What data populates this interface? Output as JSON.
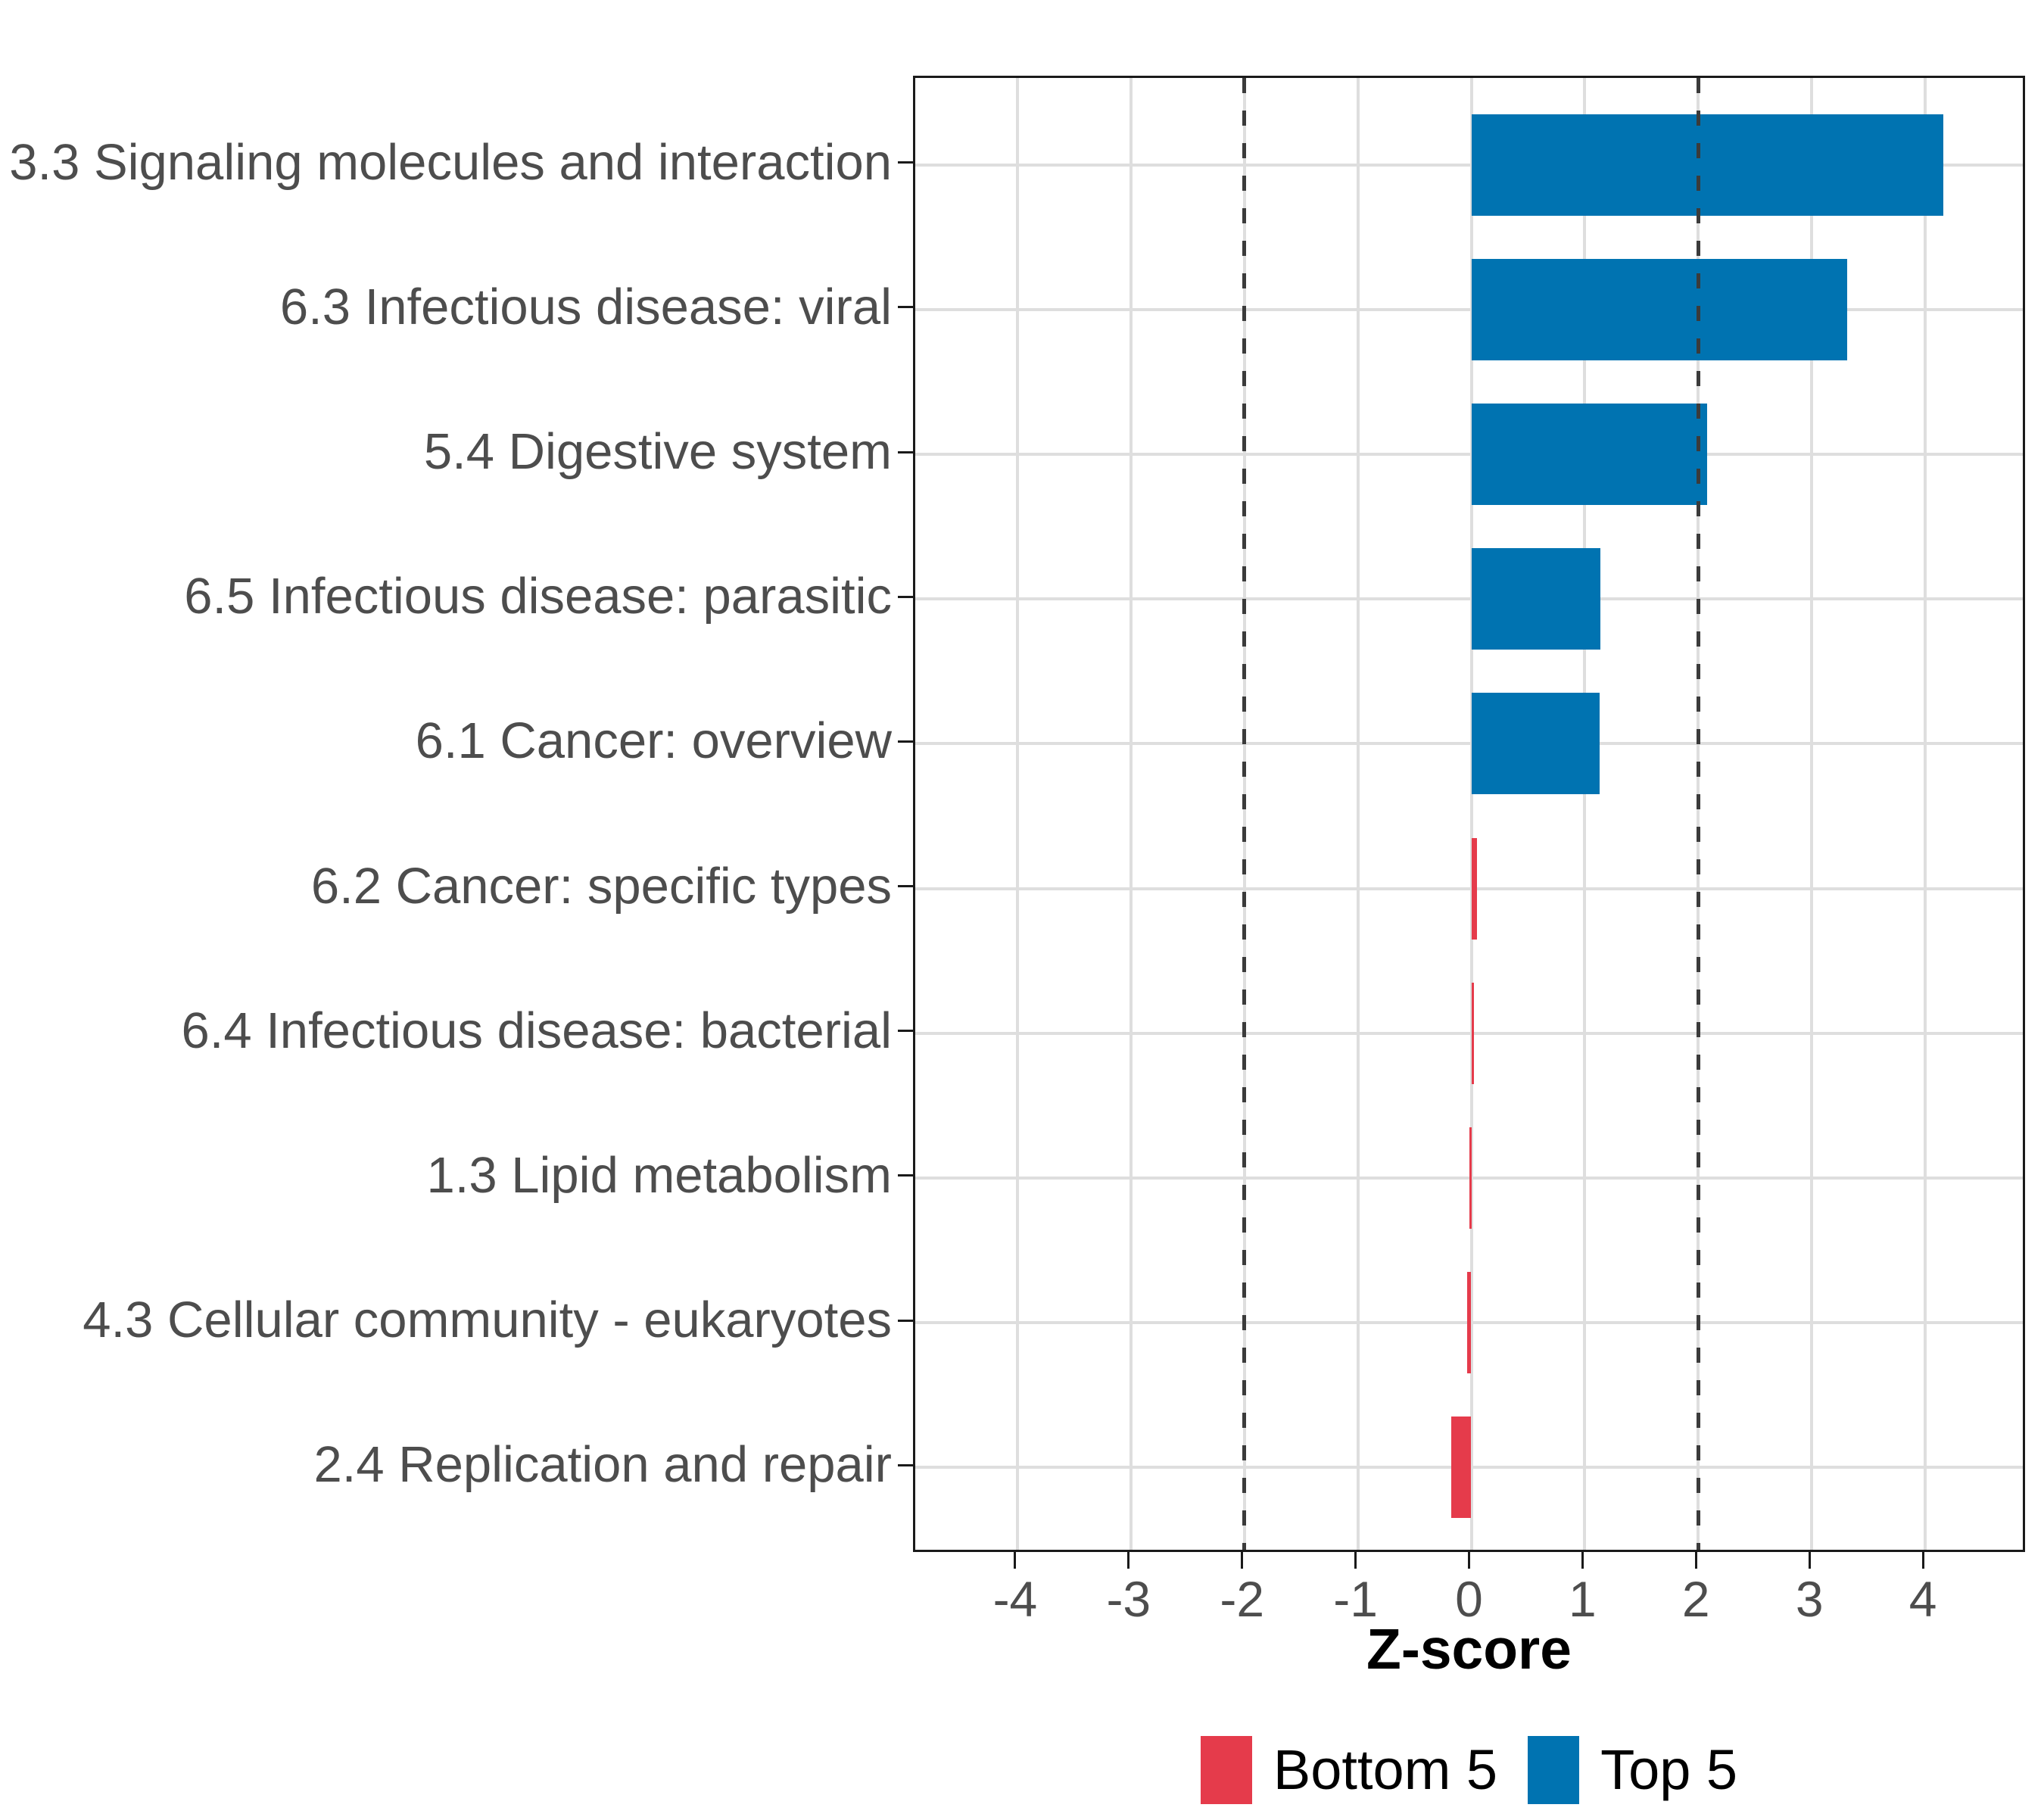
{
  "chart_data": {
    "type": "bar",
    "orientation": "horizontal",
    "title": "",
    "xlabel": "Z-score",
    "categories": [
      "3.3 Signaling molecules and interaction",
      "6.3 Infectious disease: viral",
      "5.4 Digestive system",
      "6.5 Infectious disease: parasitic",
      "6.1 Cancer: overview",
      "6.2 Cancer: specific types",
      "6.4 Infectious disease: bacterial",
      "1.3 Lipid metabolism",
      "4.3 Cellular community - eukaryotes",
      "2.4 Replication and repair"
    ],
    "values": [
      4.16,
      3.31,
      2.08,
      1.14,
      1.13,
      0.05,
      0.02,
      -0.02,
      -0.04,
      -0.18
    ],
    "groups": [
      "Top 5",
      "Top 5",
      "Top 5",
      "Top 5",
      "Top 5",
      "Bottom 5",
      "Bottom 5",
      "Bottom 5",
      "Bottom 5",
      "Bottom 5"
    ],
    "x_ticks": [
      -4,
      -3,
      -2,
      -1,
      0,
      1,
      2,
      3,
      4
    ],
    "x_tick_labels": [
      "-4",
      "-3",
      "-2",
      "-1",
      "0",
      "1",
      "2",
      "3",
      "4"
    ],
    "xlim": [
      -4.9,
      4.9
    ],
    "reference_lines": [
      -2,
      2
    ],
    "grid": "major-only",
    "legend_position": "bottom",
    "legend": [
      {
        "label": "Bottom 5",
        "group": "Bottom 5",
        "color": "#E53B4B"
      },
      {
        "label": "Top 5",
        "group": "Top 5",
        "color": "#0073B1"
      }
    ],
    "colors": {
      "Bottom 5": "#E53B4B",
      "Top 5": "#0073B1",
      "gridline": "#dedede",
      "reference_line": "#3b3b3b",
      "axis_text": "#4d4d4d",
      "axis_title": "#000000",
      "panel_border": "#1a1a1a"
    }
  }
}
